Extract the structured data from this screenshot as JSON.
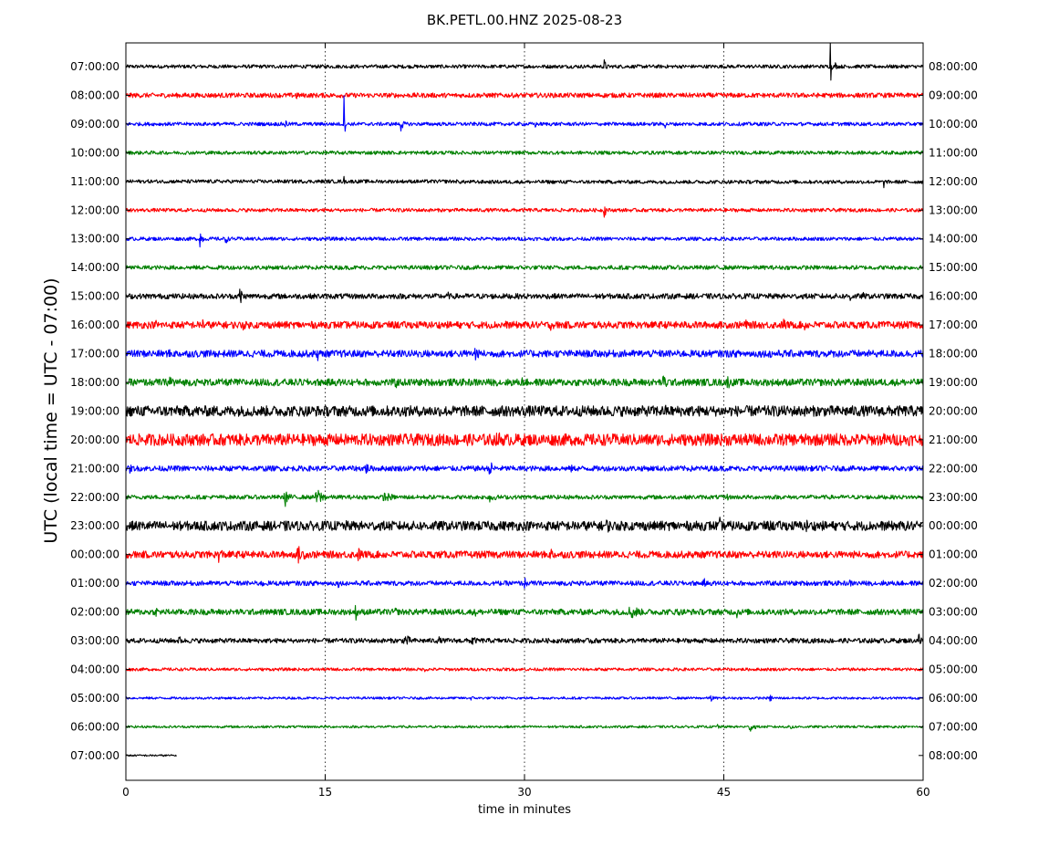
{
  "chart_data": {
    "type": "line",
    "title": "BK.PETL.00.HNZ 2025-08-23",
    "xlabel": "time in minutes",
    "ylabel": "UTC (local time = UTC - 07:00)",
    "xlim": [
      0,
      60
    ],
    "x_ticks": [
      "0",
      "15",
      "30",
      "45",
      "60"
    ],
    "grid": "vertical dotted lines at 15, 30, 45",
    "trace_colors": [
      "#000000",
      "#ff0000",
      "#0000ff",
      "#008000"
    ],
    "rows": [
      {
        "left": "07:00:00",
        "right": "08:00:00",
        "color": "#000000",
        "level": 0.3,
        "events": [
          [
            36,
            1.3,
            0.3
          ],
          [
            53,
            9.0,
            0.05
          ],
          [
            53.4,
            0.8,
            0.2
          ]
        ],
        "step": [
          0,
          0.06,
          0.02
        ]
      },
      {
        "left": "08:00:00",
        "right": "09:00:00",
        "color": "#ff0000",
        "level": 0.4,
        "events": [
          [
            12.8,
            1.0,
            0.3
          ],
          [
            20,
            0.5,
            0.1
          ],
          [
            23.5,
            0.5,
            0.1
          ]
        ]
      },
      {
        "left": "09:00:00",
        "right": "10:00:00",
        "color": "#0000ff",
        "level": 0.3,
        "events": [
          [
            16.4,
            7.0,
            0.05
          ],
          [
            12.0,
            1.0,
            0.3
          ],
          [
            20.7,
            1.3,
            0.35
          ],
          [
            30.8,
            0.9,
            0.1
          ],
          [
            40.6,
            1.2,
            0.1
          ]
        ]
      },
      {
        "left": "10:00:00",
        "right": "11:00:00",
        "color": "#008000",
        "level": 0.3,
        "events": [
          [
            16.3,
            0.4,
            0.2
          ]
        ]
      },
      {
        "left": "11:00:00",
        "right": "12:00:00",
        "color": "#000000",
        "level": 0.3,
        "events": [
          [
            16.4,
            1.2,
            0.05
          ],
          [
            57,
            1.6,
            0.15
          ],
          [
            37.5,
            0.4,
            0.1
          ]
        ],
        "step": [
          25,
          0.0,
          -0.08
        ]
      },
      {
        "left": "12:00:00",
        "right": "13:00:00",
        "color": "#ff0000",
        "level": 0.3,
        "events": [
          [
            36,
            1.3,
            0.3
          ]
        ]
      },
      {
        "left": "13:00:00",
        "right": "14:00:00",
        "color": "#0000ff",
        "level": 0.3,
        "events": [
          [
            5.6,
            2.0,
            0.25
          ],
          [
            7.5,
            1.2,
            0.25
          ]
        ]
      },
      {
        "left": "14:00:00",
        "right": "15:00:00",
        "color": "#008000",
        "level": 0.35,
        "events": [
          [
            43,
            0.4,
            0.2
          ],
          [
            55,
            0.4,
            0.3
          ]
        ]
      },
      {
        "left": "15:00:00",
        "right": "16:00:00",
        "color": "#000000",
        "level": 0.45,
        "events": [
          [
            8.6,
            2.2,
            0.3
          ],
          [
            19.3,
            0.7,
            0.5
          ],
          [
            24.2,
            1.0,
            0.3
          ],
          [
            27.3,
            0.6,
            0.4
          ],
          [
            29.5,
            0.5,
            0.3
          ],
          [
            54.5,
            1.2,
            0.3
          ],
          [
            55.5,
            0.7,
            0.3
          ]
        ]
      },
      {
        "left": "16:00:00",
        "right": "17:00:00",
        "color": "#ff0000",
        "level": 0.6,
        "events": [
          [
            2.3,
            1.2,
            0.3
          ],
          [
            5.8,
            1.4,
            0.3
          ],
          [
            8.8,
            1.0,
            0.6
          ],
          [
            11.0,
            0.6,
            1.0
          ],
          [
            18.0,
            0.6,
            0.3
          ],
          [
            25.5,
            0.6,
            0.6
          ],
          [
            28.5,
            1.2,
            0.3
          ],
          [
            32.0,
            1.1,
            0.6
          ],
          [
            34.0,
            0.5,
            0.3
          ],
          [
            46.5,
            1.4,
            0.6
          ],
          [
            49.5,
            1.3,
            0.6
          ],
          [
            51.0,
            1.5,
            0.4
          ],
          [
            59.0,
            0.6,
            0.6
          ]
        ]
      },
      {
        "left": "17:00:00",
        "right": "18:00:00",
        "color": "#0000ff",
        "level": 0.6,
        "events": [
          [
            0.2,
            0.6,
            0.2
          ],
          [
            3.3,
            1.0,
            0.3
          ],
          [
            12.5,
            0.7,
            0.3
          ],
          [
            14.4,
            1.6,
            0.3
          ],
          [
            16.5,
            0.8,
            0.5
          ],
          [
            22.0,
            0.8,
            1.0
          ],
          [
            26.3,
            1.5,
            0.5
          ],
          [
            30.8,
            0.6,
            0.3
          ],
          [
            48.5,
            1.2,
            0.4
          ],
          [
            59.5,
            0.6,
            0.3
          ]
        ]
      },
      {
        "left": "18:00:00",
        "right": "19:00:00",
        "color": "#008000",
        "level": 0.6,
        "events": [
          [
            3.3,
            1.7,
            0.9
          ],
          [
            20.3,
            1.2,
            0.5
          ],
          [
            29.8,
            1.0,
            0.5
          ],
          [
            35.2,
            1.6,
            0.3
          ],
          [
            40.5,
            1.3,
            1.2
          ],
          [
            45.3,
            1.4,
            0.4
          ],
          [
            47,
            0.7,
            0.5
          ],
          [
            53,
            0.5,
            3.0
          ]
        ]
      },
      {
        "left": "19:00:00",
        "right": "20:00:00",
        "color": "#000000",
        "level": 0.9,
        "events": [
          [
            6.0,
            0.9,
            2.5
          ],
          [
            18.2,
            1.1,
            0.3
          ],
          [
            22.0,
            1.0,
            1.0
          ],
          [
            40.6,
            1.1,
            0.8
          ],
          [
            50.8,
            0.8,
            0.4
          ],
          [
            59.0,
            0.6,
            0.8
          ]
        ]
      },
      {
        "left": "20:00:00",
        "right": "21:00:00",
        "color": "#ff0000",
        "level": 1.0,
        "events": [
          [
            6.8,
            1.3,
            0.2
          ],
          [
            20.0,
            1.0,
            1.2
          ],
          [
            24.0,
            1.0,
            1.0
          ],
          [
            28.0,
            1.5,
            1.5
          ],
          [
            35.5,
            0.9,
            0.8
          ],
          [
            37.5,
            1.0,
            0.5
          ],
          [
            53.5,
            1.6,
            0.8
          ],
          [
            57.0,
            1.2,
            1.0
          ]
        ]
      },
      {
        "left": "21:00:00",
        "right": "22:00:00",
        "color": "#0000ff",
        "level": 0.45,
        "events": [
          [
            0.3,
            1.0,
            0.3
          ],
          [
            3.9,
            0.6,
            0.3
          ],
          [
            10.5,
            0.6,
            0.3
          ],
          [
            15.0,
            0.6,
            0.4
          ],
          [
            18.0,
            1.2,
            0.8
          ],
          [
            22.5,
            0.7,
            0.3
          ],
          [
            27.4,
            1.4,
            0.6
          ],
          [
            33.5,
            0.8,
            0.3
          ],
          [
            42.5,
            0.6,
            0.3
          ],
          [
            56.0,
            0.5,
            0.8
          ]
        ]
      },
      {
        "left": "22:00:00",
        "right": "23:00:00",
        "color": "#008000",
        "level": 0.35,
        "events": [
          [
            1.6,
            0.6,
            0.3
          ],
          [
            12.0,
            1.6,
            0.6
          ],
          [
            14.4,
            1.6,
            1.0
          ],
          [
            19.5,
            0.9,
            1.5
          ],
          [
            27.4,
            1.4,
            0.6
          ],
          [
            35.0,
            0.5,
            0.3
          ],
          [
            45.2,
            0.8,
            0.4
          ]
        ]
      },
      {
        "left": "23:00:00",
        "right": "00:00:00",
        "color": "#000000",
        "level": 0.8,
        "events": [
          [
            12.0,
            1.1,
            0.4
          ],
          [
            16.5,
            1.0,
            1.5
          ],
          [
            36.2,
            1.3,
            1.0
          ],
          [
            44.7,
            1.5,
            0.3
          ],
          [
            48.5,
            0.9,
            0.8
          ],
          [
            51.2,
            1.3,
            0.5
          ],
          [
            53.8,
            1.5,
            0.3
          ],
          [
            57.5,
            0.9,
            0.6
          ]
        ]
      },
      {
        "left": "00:00:00",
        "right": "01:00:00",
        "color": "#ff0000",
        "level": 0.6,
        "events": [
          [
            7.0,
            1.4,
            0.8
          ],
          [
            13.0,
            1.5,
            1.2
          ],
          [
            17.5,
            1.2,
            1.0
          ],
          [
            32.0,
            1.2,
            0.8
          ],
          [
            40.0,
            0.6,
            2.0
          ],
          [
            58.5,
            0.7,
            0.8
          ]
        ]
      },
      {
        "left": "01:00:00",
        "right": "02:00:00",
        "color": "#0000ff",
        "level": 0.4,
        "events": [
          [
            4.8,
            0.5,
            0.3
          ],
          [
            10.3,
            0.9,
            0.3
          ],
          [
            16.0,
            0.8,
            0.3
          ],
          [
            21.5,
            0.4,
            0.6
          ],
          [
            30.0,
            1.2,
            0.3
          ],
          [
            34.0,
            0.5,
            0.3
          ],
          [
            43.5,
            1.0,
            0.3
          ],
          [
            54.5,
            0.7,
            0.4
          ],
          [
            57.0,
            0.5,
            0.4
          ]
        ]
      },
      {
        "left": "02:00:00",
        "right": "03:00:00",
        "color": "#008000",
        "level": 0.5,
        "events": [
          [
            2.3,
            0.9,
            0.6
          ],
          [
            17.3,
            1.5,
            0.4
          ],
          [
            20.3,
            0.9,
            0.4
          ],
          [
            26.3,
            0.9,
            0.6
          ],
          [
            38.0,
            1.4,
            1.5
          ],
          [
            41.5,
            0.8,
            0.8
          ],
          [
            46.0,
            1.2,
            0.3
          ],
          [
            57.0,
            0.5,
            0.6
          ]
        ]
      },
      {
        "left": "03:00:00",
        "right": "04:00:00",
        "color": "#000000",
        "level": 0.4,
        "events": [
          [
            4.0,
            0.9,
            0.5
          ],
          [
            7.5,
            0.5,
            0.3
          ],
          [
            21.0,
            1.3,
            0.8
          ],
          [
            23.5,
            1.0,
            0.4
          ],
          [
            26.0,
            1.2,
            0.6
          ],
          [
            35.0,
            0.9,
            0.5
          ],
          [
            59.7,
            1.8,
            0.4
          ]
        ]
      },
      {
        "left": "04:00:00",
        "right": "05:00:00",
        "color": "#ff0000",
        "level": 0.25,
        "events": [
          [
            22.5,
            0.4,
            1.0
          ],
          [
            0.1,
            0.4,
            0.1
          ]
        ]
      },
      {
        "left": "05:00:00",
        "right": "06:00:00",
        "color": "#0000ff",
        "level": 0.2,
        "events": [
          [
            26.0,
            0.5,
            0.3
          ],
          [
            44.0,
            0.9,
            0.3
          ],
          [
            48.5,
            0.8,
            0.3
          ],
          [
            52.0,
            0.4,
            0.2
          ]
        ]
      },
      {
        "left": "06:00:00",
        "right": "07:00:00",
        "color": "#008000",
        "level": 0.2,
        "events": [
          [
            44.5,
            0.7,
            0.4
          ],
          [
            47.0,
            1.0,
            0.6
          ],
          [
            50.0,
            0.9,
            0.4
          ]
        ]
      },
      {
        "left": "07:00:00",
        "right": "08:00:00",
        "color": "#000000",
        "level": 0.15,
        "events": [],
        "end": 3.8
      }
    ]
  }
}
